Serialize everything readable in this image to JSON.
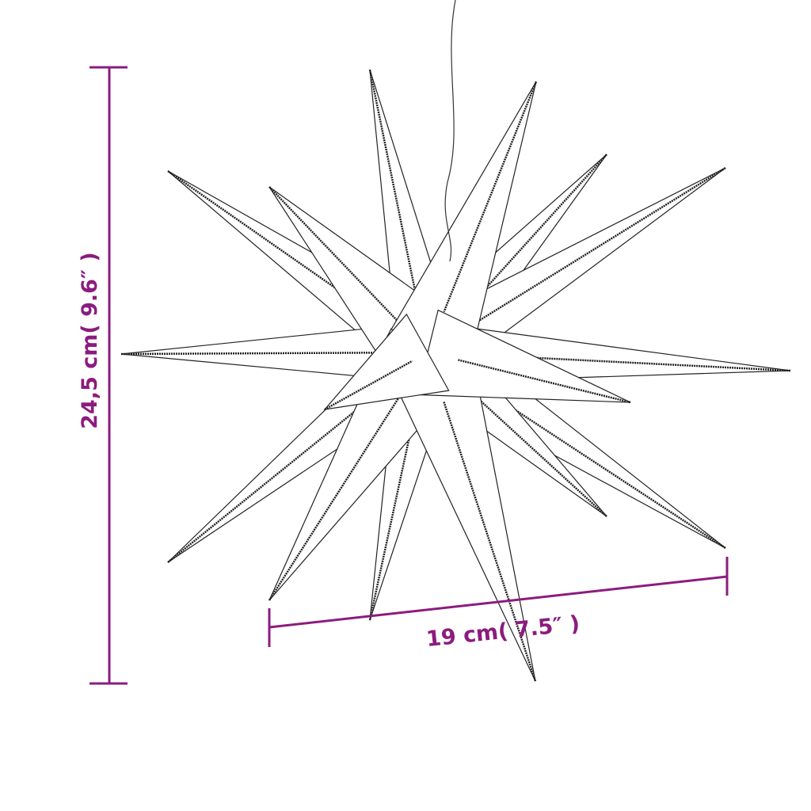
{
  "dimensions": {
    "height_label": "24,5 cm( 9.6″ )",
    "width_label": "19 cm( 7.5″ )"
  },
  "colors": {
    "dimension": "#8b1c7e",
    "outline": "#222222"
  },
  "icons": {
    "product": "star-lamp-drawing"
  }
}
